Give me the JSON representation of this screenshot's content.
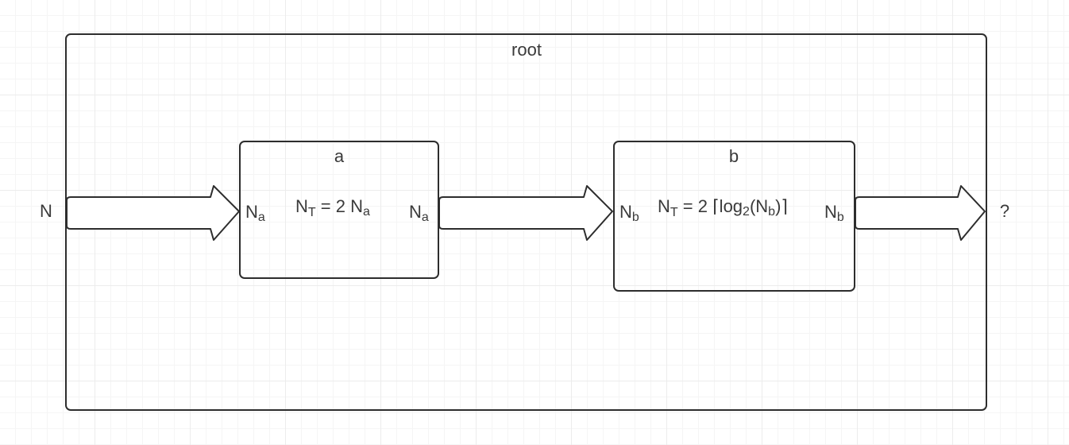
{
  "diagram": {
    "root": {
      "label": "root"
    },
    "input_label": "N",
    "output_label": "?",
    "block_a": {
      "label": "a",
      "in_var": "N",
      "in_sub": "a",
      "out_var": "N",
      "out_sub": "a",
      "formula": {
        "lhs_var": "N",
        "lhs_sub": "T",
        "rhs_prefix": " = 2 ",
        "rhs_var": "N",
        "rhs_sub": "a"
      }
    },
    "block_b": {
      "label": "b",
      "in_var": "N",
      "in_sub": "b",
      "out_var": "N",
      "out_sub": "b",
      "formula": {
        "lhs_var": "N",
        "lhs_sub": "T",
        "rhs_prefix": " = 2 ⌈log",
        "log_base": "2",
        "paren_open": "(N",
        "arg_sub": "b",
        "paren_close": ")⌉"
      }
    }
  }
}
